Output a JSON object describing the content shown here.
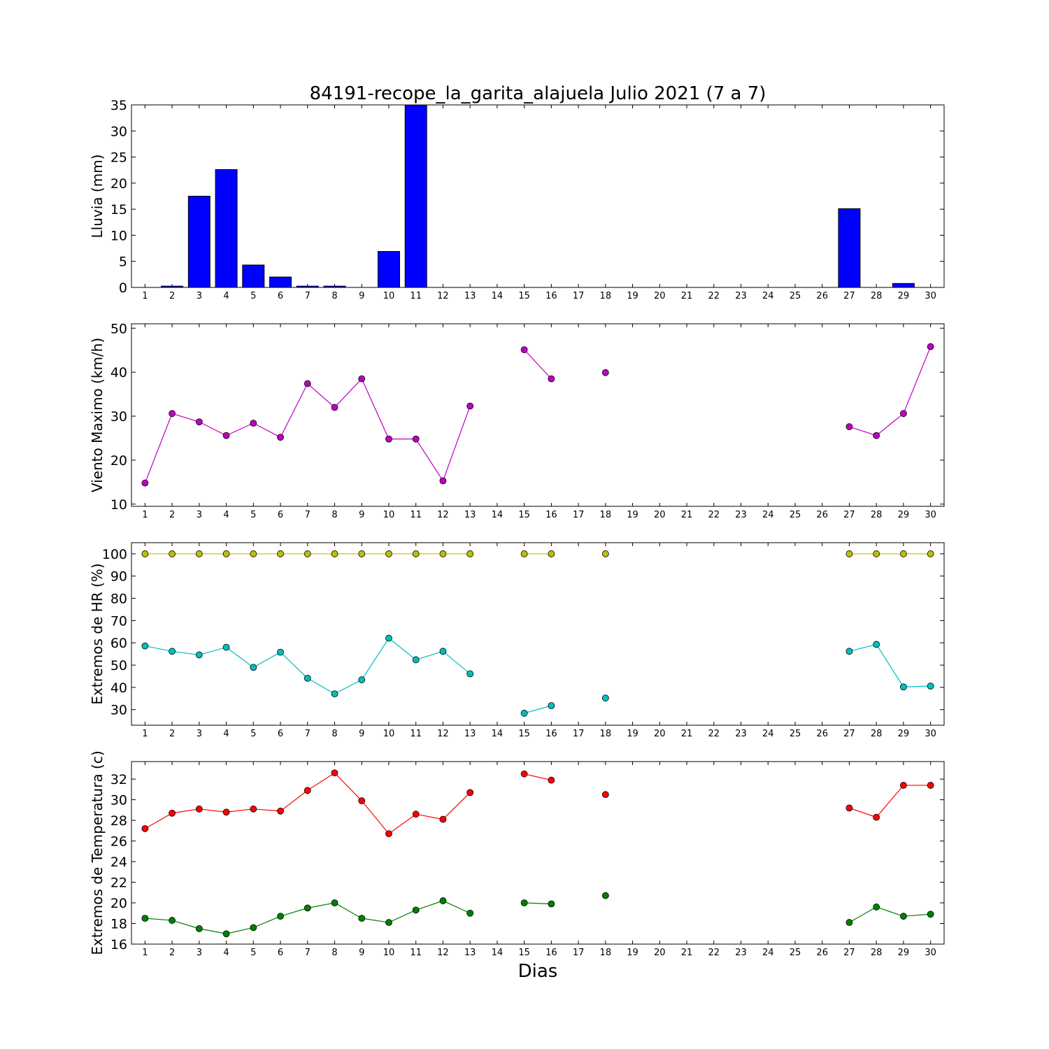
{
  "title": "84191-recope_la_garita_alajuela Julio 2021  (7 a 7)",
  "xlabel": "Dias",
  "x_ticks": [
    1,
    2,
    3,
    4,
    5,
    6,
    7,
    8,
    9,
    10,
    11,
    12,
    13,
    14,
    15,
    16,
    17,
    18,
    19,
    20,
    21,
    22,
    23,
    24,
    25,
    26,
    27,
    28,
    29,
    30
  ],
  "chart_data": [
    {
      "type": "bar",
      "ylabel": "Lluvia (mm)",
      "ylim": [
        0,
        35
      ],
      "yticks": [
        0,
        5,
        10,
        15,
        20,
        25,
        30,
        35
      ],
      "xlim": [
        0.5,
        30.5
      ],
      "color": "#0000ff",
      "x": [
        1,
        2,
        3,
        4,
        5,
        6,
        7,
        8,
        9,
        10,
        11,
        12,
        13,
        14,
        15,
        16,
        17,
        18,
        19,
        20,
        21,
        22,
        23,
        24,
        25,
        26,
        27,
        28,
        29,
        30
      ],
      "values": [
        0,
        0.25,
        17.5,
        22.6,
        4.3,
        2.0,
        0.25,
        0.25,
        0,
        6.9,
        35.0,
        0,
        0,
        0,
        0,
        0,
        0,
        0,
        0,
        0,
        0,
        0,
        0,
        0,
        0,
        0,
        15.1,
        0,
        0.76,
        0
      ]
    },
    {
      "type": "line",
      "ylabel": "Viento Maximo (km/h)",
      "ylim": [
        9.5,
        51
      ],
      "yticks": [
        10,
        20,
        30,
        40,
        50
      ],
      "xlim": [
        0.5,
        30.5
      ],
      "series": [
        {
          "color": "#bf00bf",
          "values": [
            14.8,
            30.6,
            28.7,
            25.6,
            28.4,
            25.2,
            37.4,
            32.0,
            38.5,
            24.8,
            24.8,
            15.3,
            32.3,
            null,
            45.1,
            38.5,
            null,
            39.9,
            null,
            null,
            null,
            null,
            null,
            null,
            null,
            null,
            27.6,
            25.6,
            30.6,
            45.8
          ]
        }
      ]
    },
    {
      "type": "line",
      "ylabel": "Extremos de HR (%)",
      "ylim": [
        23,
        105
      ],
      "yticks": [
        30,
        40,
        50,
        60,
        70,
        80,
        90,
        100
      ],
      "xlim": [
        0.5,
        30.5
      ],
      "series": [
        {
          "color": "#bfbf00",
          "values": [
            100,
            100,
            100,
            100,
            100,
            100,
            100,
            100,
            100,
            100,
            100,
            100,
            100,
            null,
            100,
            100,
            null,
            100,
            null,
            null,
            null,
            null,
            null,
            null,
            null,
            null,
            100,
            100,
            100,
            100
          ]
        },
        {
          "color": "#00bfbf",
          "values": [
            58.6,
            56.2,
            54.6,
            58.0,
            49.0,
            55.8,
            44.1,
            37.1,
            43.4,
            62.1,
            52.4,
            56.2,
            46.1,
            null,
            28.4,
            31.8,
            null,
            35.2,
            null,
            null,
            null,
            null,
            null,
            null,
            null,
            null,
            56.2,
            59.3,
            40.2,
            40.6
          ]
        }
      ]
    },
    {
      "type": "line",
      "ylabel": "Extremos de Temperatura (c)",
      "ylim": [
        16,
        33.7
      ],
      "yticks": [
        16,
        18,
        20,
        22,
        24,
        26,
        28,
        30,
        32
      ],
      "xlim": [
        0.5,
        30.5
      ],
      "series": [
        {
          "color": "#ff0000",
          "values": [
            27.2,
            28.7,
            29.1,
            28.8,
            29.1,
            28.9,
            30.9,
            32.6,
            29.9,
            26.7,
            28.6,
            28.1,
            30.7,
            null,
            32.5,
            31.9,
            null,
            30.5,
            null,
            null,
            null,
            null,
            null,
            null,
            null,
            null,
            29.2,
            28.3,
            31.4,
            31.4
          ]
        },
        {
          "color": "#008000",
          "values": [
            18.5,
            18.3,
            17.5,
            17.0,
            17.6,
            18.7,
            19.5,
            20.0,
            18.5,
            18.1,
            19.3,
            20.2,
            19.0,
            null,
            20.0,
            19.9,
            null,
            20.7,
            null,
            null,
            null,
            null,
            null,
            null,
            null,
            null,
            18.1,
            19.6,
            18.7,
            18.9
          ]
        }
      ]
    }
  ]
}
